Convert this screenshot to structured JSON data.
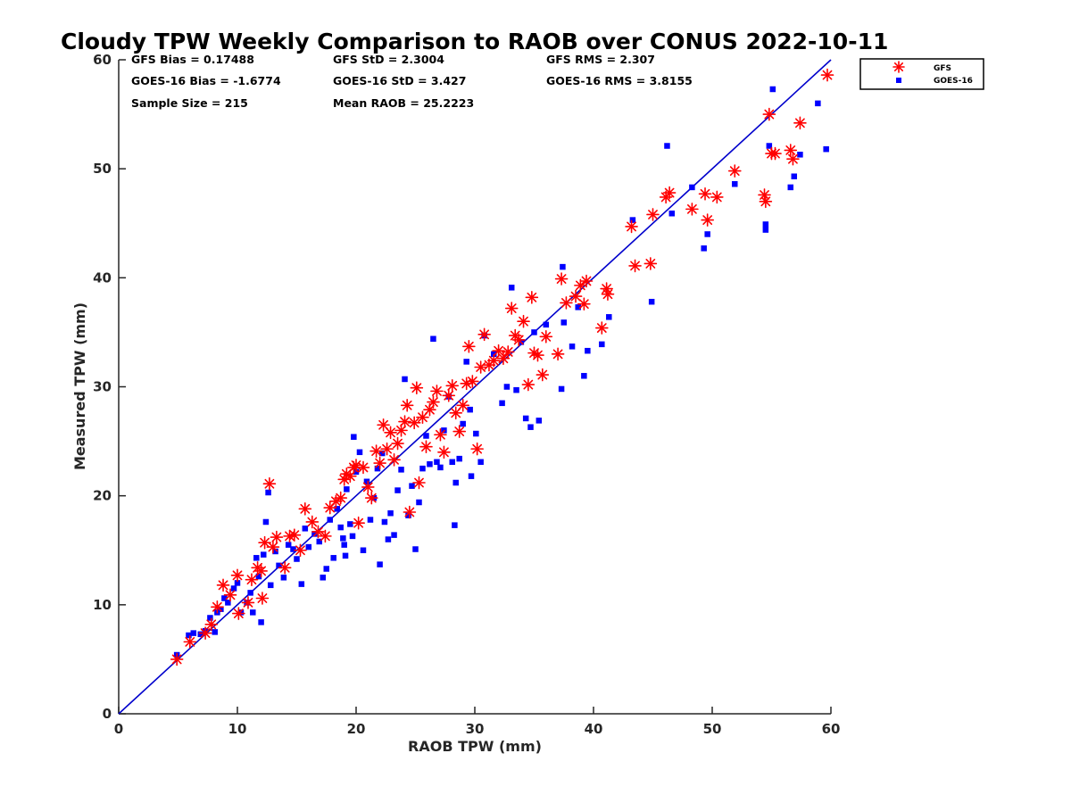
{
  "chart_data": {
    "type": "scatter",
    "title": "Cloudy TPW Weekly Comparison to RAOB over CONUS 2022-10-11",
    "xlabel": "RAOB TPW (mm)",
    "ylabel": "Measured TPW (mm)",
    "xlim": [
      0,
      60
    ],
    "ylim": [
      0,
      60
    ],
    "xticks": [
      0,
      10,
      20,
      30,
      40,
      50,
      60
    ],
    "yticks": [
      0,
      10,
      20,
      30,
      40,
      50,
      60
    ],
    "grid": false,
    "legend_position": "top-right, outside plot",
    "reference_line": {
      "x": [
        0,
        60
      ],
      "y": [
        0,
        60
      ],
      "color": "#0000cc"
    },
    "stats": [
      [
        "GFS Bias = 0.17488",
        "GFS StD = 2.3004",
        "GFS RMS = 2.307"
      ],
      [
        "GOES-16 Bias = -1.6774",
        "GOES-16 StD = 3.427",
        "GOES-16 RMS = 3.8155"
      ],
      [
        "Sample Size = 215",
        "Mean RAOB = 25.2223",
        ""
      ]
    ],
    "series": [
      {
        "name": "GFS",
        "marker": "asterisk",
        "color": "#ff0000",
        "points": [
          [
            4.9,
            5.0
          ],
          [
            6.0,
            6.6
          ],
          [
            7.3,
            7.4
          ],
          [
            7.8,
            8.2
          ],
          [
            8.3,
            9.8
          ],
          [
            8.8,
            11.8
          ],
          [
            9.4,
            10.9
          ],
          [
            10.0,
            12.7
          ],
          [
            10.1,
            9.2
          ],
          [
            10.9,
            10.2
          ],
          [
            11.2,
            12.3
          ],
          [
            11.7,
            13.4
          ],
          [
            12.0,
            13.1
          ],
          [
            12.1,
            10.6
          ],
          [
            12.3,
            15.7
          ],
          [
            12.7,
            21.1
          ],
          [
            13.0,
            15.3
          ],
          [
            13.3,
            16.2
          ],
          [
            14.0,
            13.4
          ],
          [
            14.4,
            16.3
          ],
          [
            14.8,
            16.4
          ],
          [
            15.3,
            15.0
          ],
          [
            15.7,
            18.8
          ],
          [
            16.3,
            17.6
          ],
          [
            16.8,
            16.7
          ],
          [
            17.4,
            16.3
          ],
          [
            17.8,
            18.9
          ],
          [
            18.3,
            19.5
          ],
          [
            18.7,
            19.8
          ],
          [
            19.0,
            21.5
          ],
          [
            19.2,
            22.0
          ],
          [
            19.5,
            21.8
          ],
          [
            19.8,
            22.6
          ],
          [
            20.0,
            22.8
          ],
          [
            20.2,
            17.5
          ],
          [
            20.6,
            22.6
          ],
          [
            21.0,
            20.8
          ],
          [
            21.3,
            19.8
          ],
          [
            21.7,
            24.1
          ],
          [
            22.0,
            23.0
          ],
          [
            22.3,
            26.5
          ],
          [
            22.6,
            24.3
          ],
          [
            22.9,
            25.8
          ],
          [
            23.2,
            23.3
          ],
          [
            23.5,
            24.8
          ],
          [
            23.8,
            26.0
          ],
          [
            24.1,
            26.8
          ],
          [
            24.3,
            28.3
          ],
          [
            24.5,
            18.5
          ],
          [
            24.9,
            26.7
          ],
          [
            25.1,
            29.9
          ],
          [
            25.3,
            21.2
          ],
          [
            25.6,
            27.2
          ],
          [
            25.9,
            24.5
          ],
          [
            26.2,
            27.9
          ],
          [
            26.5,
            28.6
          ],
          [
            26.8,
            29.6
          ],
          [
            27.1,
            25.6
          ],
          [
            27.4,
            24.0
          ],
          [
            27.8,
            29.2
          ],
          [
            28.1,
            30.1
          ],
          [
            28.4,
            27.6
          ],
          [
            28.7,
            25.9
          ],
          [
            29.0,
            28.3
          ],
          [
            29.3,
            30.3
          ],
          [
            29.5,
            33.7
          ],
          [
            29.8,
            30.5
          ],
          [
            30.2,
            24.3
          ],
          [
            30.5,
            31.8
          ],
          [
            30.8,
            34.8
          ],
          [
            31.2,
            32.0
          ],
          [
            31.6,
            32.4
          ],
          [
            32.0,
            33.3
          ],
          [
            32.4,
            32.6
          ],
          [
            32.8,
            33.2
          ],
          [
            33.1,
            37.2
          ],
          [
            33.4,
            34.7
          ],
          [
            33.7,
            34.3
          ],
          [
            34.1,
            36.0
          ],
          [
            34.5,
            30.2
          ],
          [
            34.8,
            38.2
          ],
          [
            35.0,
            33.1
          ],
          [
            35.3,
            32.9
          ],
          [
            35.7,
            31.1
          ],
          [
            36.0,
            34.6
          ],
          [
            37.0,
            33.0
          ],
          [
            37.3,
            39.9
          ],
          [
            37.7,
            37.7
          ],
          [
            38.5,
            38.3
          ],
          [
            38.9,
            39.3
          ],
          [
            39.2,
            37.6
          ],
          [
            39.4,
            39.7
          ],
          [
            40.7,
            35.4
          ],
          [
            41.2,
            38.5
          ],
          [
            41.1,
            39.0
          ],
          [
            43.2,
            44.7
          ],
          [
            43.5,
            41.1
          ],
          [
            44.8,
            41.3
          ],
          [
            45.0,
            45.8
          ],
          [
            46.1,
            47.4
          ],
          [
            46.4,
            47.8
          ],
          [
            48.3,
            46.3
          ],
          [
            49.4,
            47.7
          ],
          [
            49.6,
            45.3
          ],
          [
            50.4,
            47.4
          ],
          [
            51.9,
            49.8
          ],
          [
            54.4,
            47.6
          ],
          [
            54.5,
            47.0
          ],
          [
            54.8,
            55.0
          ],
          [
            55.0,
            51.4
          ],
          [
            55.3,
            51.4
          ],
          [
            56.6,
            51.7
          ],
          [
            56.8,
            50.9
          ],
          [
            57.4,
            54.2
          ],
          [
            59.7,
            58.6
          ]
        ]
      },
      {
        "name": "GOES-16",
        "marker": "square",
        "color": "#0000ff",
        "points": [
          [
            4.9,
            5.4
          ],
          [
            5.9,
            7.2
          ],
          [
            6.3,
            7.4
          ],
          [
            6.9,
            7.3
          ],
          [
            7.3,
            7.6
          ],
          [
            7.7,
            8.8
          ],
          [
            8.1,
            7.5
          ],
          [
            8.3,
            9.3
          ],
          [
            8.6,
            9.6
          ],
          [
            8.9,
            10.6
          ],
          [
            9.2,
            10.2
          ],
          [
            9.7,
            11.5
          ],
          [
            10.0,
            12.0
          ],
          [
            10.3,
            9.3
          ],
          [
            10.8,
            10.2
          ],
          [
            11.1,
            11.1
          ],
          [
            11.3,
            9.3
          ],
          [
            11.6,
            14.3
          ],
          [
            11.8,
            12.6
          ],
          [
            12.0,
            8.4
          ],
          [
            12.2,
            14.6
          ],
          [
            12.4,
            17.6
          ],
          [
            12.6,
            20.3
          ],
          [
            12.8,
            11.8
          ],
          [
            13.2,
            14.9
          ],
          [
            13.5,
            13.6
          ],
          [
            13.9,
            12.5
          ],
          [
            14.3,
            15.5
          ],
          [
            14.7,
            15.1
          ],
          [
            15.0,
            14.2
          ],
          [
            15.4,
            11.9
          ],
          [
            15.7,
            17.0
          ],
          [
            16.0,
            15.3
          ],
          [
            16.5,
            16.5
          ],
          [
            16.9,
            15.8
          ],
          [
            17.2,
            12.5
          ],
          [
            17.5,
            13.3
          ],
          [
            17.8,
            17.8
          ],
          [
            18.1,
            14.3
          ],
          [
            18.4,
            18.8
          ],
          [
            18.7,
            17.1
          ],
          [
            18.9,
            16.1
          ],
          [
            19.0,
            15.5
          ],
          [
            19.1,
            14.5
          ],
          [
            19.2,
            20.6
          ],
          [
            19.5,
            17.4
          ],
          [
            19.7,
            16.3
          ],
          [
            19.8,
            25.4
          ],
          [
            20.0,
            22.2
          ],
          [
            20.3,
            24.0
          ],
          [
            20.6,
            15.0
          ],
          [
            20.9,
            21.3
          ],
          [
            21.2,
            17.8
          ],
          [
            21.5,
            19.8
          ],
          [
            21.8,
            22.5
          ],
          [
            22.0,
            13.7
          ],
          [
            22.2,
            23.9
          ],
          [
            22.4,
            17.6
          ],
          [
            22.7,
            16.0
          ],
          [
            22.9,
            18.4
          ],
          [
            23.2,
            16.4
          ],
          [
            23.5,
            20.5
          ],
          [
            23.8,
            22.4
          ],
          [
            24.1,
            30.7
          ],
          [
            24.4,
            18.2
          ],
          [
            24.7,
            20.9
          ],
          [
            25.0,
            15.1
          ],
          [
            25.3,
            19.4
          ],
          [
            25.6,
            22.5
          ],
          [
            25.9,
            25.5
          ],
          [
            26.2,
            22.9
          ],
          [
            26.5,
            34.4
          ],
          [
            26.8,
            23.1
          ],
          [
            27.1,
            22.6
          ],
          [
            27.4,
            26.0
          ],
          [
            27.8,
            29.1
          ],
          [
            28.1,
            23.1
          ],
          [
            28.3,
            17.3
          ],
          [
            28.4,
            21.2
          ],
          [
            28.7,
            23.4
          ],
          [
            29.0,
            26.6
          ],
          [
            29.3,
            32.3
          ],
          [
            29.6,
            27.9
          ],
          [
            29.7,
            21.8
          ],
          [
            30.1,
            25.7
          ],
          [
            30.5,
            23.1
          ],
          [
            30.8,
            34.7
          ],
          [
            31.6,
            33.0
          ],
          [
            32.3,
            28.5
          ],
          [
            32.7,
            30.0
          ],
          [
            33.1,
            39.1
          ],
          [
            33.5,
            29.7
          ],
          [
            33.9,
            34.1
          ],
          [
            34.3,
            27.1
          ],
          [
            34.7,
            26.3
          ],
          [
            35.0,
            35.0
          ],
          [
            35.4,
            26.9
          ],
          [
            36.0,
            35.7
          ],
          [
            37.3,
            29.8
          ],
          [
            37.5,
            35.9
          ],
          [
            37.4,
            41.0
          ],
          [
            38.2,
            33.7
          ],
          [
            38.7,
            37.3
          ],
          [
            39.2,
            31.0
          ],
          [
            39.5,
            33.3
          ],
          [
            40.7,
            33.9
          ],
          [
            41.3,
            36.4
          ],
          [
            43.3,
            45.3
          ],
          [
            44.9,
            37.8
          ],
          [
            46.2,
            52.1
          ],
          [
            46.6,
            45.9
          ],
          [
            48.3,
            48.3
          ],
          [
            49.3,
            42.7
          ],
          [
            49.6,
            44.0
          ],
          [
            51.9,
            48.6
          ],
          [
            54.5,
            44.9
          ],
          [
            54.5,
            44.4
          ],
          [
            54.8,
            52.1
          ],
          [
            55.1,
            57.3
          ],
          [
            56.9,
            49.3
          ],
          [
            56.6,
            48.3
          ],
          [
            57.4,
            51.3
          ],
          [
            58.9,
            56.0
          ],
          [
            59.6,
            51.8
          ]
        ]
      }
    ]
  }
}
